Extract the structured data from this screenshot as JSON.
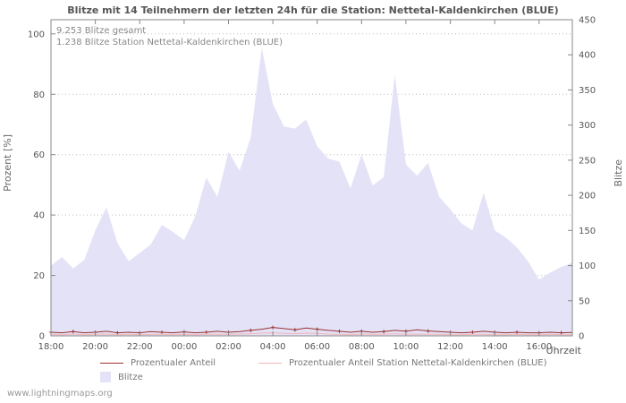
{
  "footer": {
    "watermark": "www.lightningmaps.org"
  },
  "chart_data": {
    "type": "area",
    "title": "Blitze mit 14 Teilnehmern der letzten 24h für die Station: Nettetal-Kaldenkirchen (BLUE)",
    "annotations": [
      "9.253 Blitze gesamt",
      "1.238 Blitze Station Nettetal-Kaldenkirchen (BLUE)"
    ],
    "xlabel": "Uhrzeit",
    "left_axis": {
      "label": "Prozent  [%]",
      "min": 0,
      "max": 100,
      "ticks": [
        0,
        20,
        40,
        60,
        80,
        100
      ]
    },
    "right_axis": {
      "label": "Blitze",
      "min": 0,
      "max": 450,
      "ticks": [
        0,
        50,
        100,
        150,
        200,
        250,
        300,
        350,
        400,
        450
      ]
    },
    "x_step_minutes": 30,
    "x_ticks": [
      {
        "label": "18:00",
        "i": 0
      },
      {
        "label": "20:00",
        "i": 4
      },
      {
        "label": "22:00",
        "i": 8
      },
      {
        "label": "00:00",
        "i": 12
      },
      {
        "label": "02:00",
        "i": 16
      },
      {
        "label": "04:00",
        "i": 20
      },
      {
        "label": "06:00",
        "i": 24
      },
      {
        "label": "08:00",
        "i": 28
      },
      {
        "label": "10:00",
        "i": 32
      },
      {
        "label": "12:00",
        "i": 36
      },
      {
        "label": "14:00",
        "i": 40
      },
      {
        "label": "16:00",
        "i": 44
      }
    ],
    "legend_position": "bottom",
    "series": [
      {
        "name": "Blitze",
        "type": "area",
        "axis": "right",
        "color": "#e4e2f7",
        "values": [
          100,
          112,
          96,
          108,
          150,
          183,
          132,
          106,
          118,
          130,
          158,
          148,
          136,
          170,
          225,
          198,
          262,
          235,
          282,
          410,
          330,
          298,
          295,
          308,
          270,
          252,
          248,
          210,
          258,
          214,
          226,
          372,
          244,
          228,
          246,
          198,
          180,
          160,
          150,
          204,
          150,
          140,
          126,
          106,
          80,
          90,
          98,
          104
        ]
      },
      {
        "name": "Prozentualer Anteil",
        "type": "line",
        "axis": "left",
        "color": "#993333",
        "markers": true,
        "values": [
          1.2,
          1.0,
          1.4,
          1.0,
          1.2,
          1.5,
          1.0,
          1.2,
          1.0,
          1.4,
          1.2,
          1.0,
          1.3,
          1.0,
          1.2,
          1.5,
          1.2,
          1.4,
          1.8,
          2.2,
          2.8,
          2.4,
          2.0,
          2.6,
          2.2,
          1.8,
          1.5,
          1.2,
          1.5,
          1.2,
          1.4,
          1.8,
          1.5,
          2.0,
          1.6,
          1.4,
          1.2,
          1.0,
          1.2,
          1.5,
          1.2,
          1.0,
          1.2,
          1.0,
          1.0,
          1.2,
          1.0,
          1.1
        ]
      },
      {
        "name": "Prozentualer Anteil Station Nettetal-Kaldenkirchen (BLUE)",
        "type": "line",
        "axis": "left",
        "color": "#f2b6b6",
        "markers": false,
        "values": [
          0.5,
          0.4,
          0.6,
          0.4,
          0.5,
          0.6,
          0.4,
          0.5,
          0.4,
          0.5,
          0.5,
          0.4,
          0.5,
          0.4,
          0.6,
          0.5,
          0.5,
          0.6,
          0.7,
          0.9,
          1.0,
          0.8,
          0.7,
          0.9,
          0.8,
          0.6,
          0.5,
          0.4,
          0.6,
          0.5,
          0.5,
          0.7,
          0.5,
          0.6,
          0.5,
          0.5,
          0.4,
          0.4,
          0.5,
          0.5,
          0.4,
          0.4,
          0.5,
          0.4,
          0.4,
          0.5,
          0.4,
          0.4
        ]
      }
    ]
  }
}
